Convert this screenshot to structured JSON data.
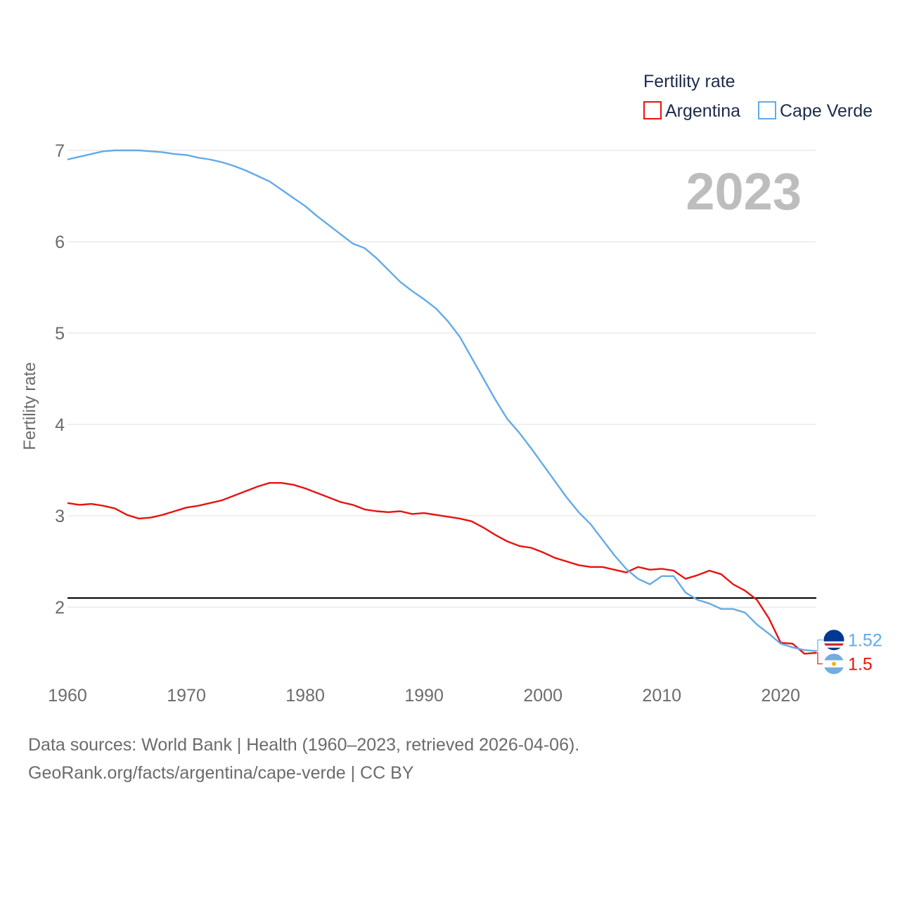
{
  "chart_data": {
    "type": "line",
    "title": "Fertility rate",
    "year_label": "2023",
    "xlabel": "",
    "ylabel": "Fertility rate",
    "xlim": [
      1960,
      2023
    ],
    "ylim": [
      1.2,
      7.2
    ],
    "x_ticks": [
      1960,
      1970,
      1980,
      1990,
      2000,
      2010,
      2020
    ],
    "y_ticks": [
      2,
      3,
      4,
      5,
      6,
      7
    ],
    "reference_line": 2.1,
    "legend_position": "top-right",
    "x": [
      1960,
      1961,
      1962,
      1963,
      1964,
      1965,
      1966,
      1967,
      1968,
      1969,
      1970,
      1971,
      1972,
      1973,
      1974,
      1975,
      1976,
      1977,
      1978,
      1979,
      1980,
      1981,
      1982,
      1983,
      1984,
      1985,
      1986,
      1987,
      1988,
      1989,
      1990,
      1991,
      1992,
      1993,
      1994,
      1995,
      1996,
      1997,
      1998,
      1999,
      2000,
      2001,
      2002,
      2003,
      2004,
      2005,
      2006,
      2007,
      2008,
      2009,
      2010,
      2011,
      2012,
      2013,
      2014,
      2015,
      2016,
      2017,
      2018,
      2019,
      2020,
      2021,
      2022,
      2023
    ],
    "series": [
      {
        "name": "Argentina",
        "color": "#e8130f",
        "end_label": "1.5",
        "flag_icon": "argentina-flag-icon",
        "values": [
          3.14,
          3.12,
          3.13,
          3.11,
          3.08,
          3.01,
          2.97,
          2.98,
          3.01,
          3.05,
          3.09,
          3.11,
          3.14,
          3.17,
          3.22,
          3.27,
          3.32,
          3.36,
          3.36,
          3.34,
          3.3,
          3.25,
          3.2,
          3.15,
          3.12,
          3.07,
          3.05,
          3.04,
          3.05,
          3.02,
          3.03,
          3.01,
          2.99,
          2.97,
          2.94,
          2.87,
          2.79,
          2.72,
          2.67,
          2.65,
          2.6,
          2.54,
          2.5,
          2.46,
          2.44,
          2.44,
          2.41,
          2.38,
          2.44,
          2.41,
          2.42,
          2.4,
          2.31,
          2.35,
          2.4,
          2.36,
          2.25,
          2.18,
          2.08,
          1.88,
          1.61,
          1.6,
          1.49,
          1.5
        ]
      },
      {
        "name": "Cape Verde",
        "color": "#63aae8",
        "end_label": "1.52",
        "flag_icon": "cape-verde-flag-icon",
        "values": [
          6.9,
          6.93,
          6.96,
          6.99,
          7.0,
          7.0,
          7.0,
          6.99,
          6.98,
          6.96,
          6.95,
          6.92,
          6.9,
          6.87,
          6.83,
          6.78,
          6.72,
          6.66,
          6.57,
          6.48,
          6.39,
          6.28,
          6.18,
          6.08,
          5.98,
          5.93,
          5.82,
          5.69,
          5.56,
          5.46,
          5.37,
          5.27,
          5.13,
          4.96,
          4.73,
          4.5,
          4.27,
          4.06,
          3.91,
          3.74,
          3.56,
          3.38,
          3.2,
          3.04,
          2.91,
          2.74,
          2.57,
          2.42,
          2.31,
          2.25,
          2.34,
          2.34,
          2.16,
          2.08,
          2.04,
          1.98,
          1.98,
          1.94,
          1.81,
          1.71,
          1.6,
          1.56,
          1.53,
          1.52
        ]
      }
    ]
  },
  "legend": {
    "title": "Fertility rate",
    "items": [
      "Argentina",
      "Cape Verde"
    ]
  },
  "footer": {
    "sources": "Data sources: World Bank | Health (1960–2023, retrieved 2026-04-06).",
    "credit": "GeoRank.org/facts/argentina/cape-verde | CC BY"
  }
}
